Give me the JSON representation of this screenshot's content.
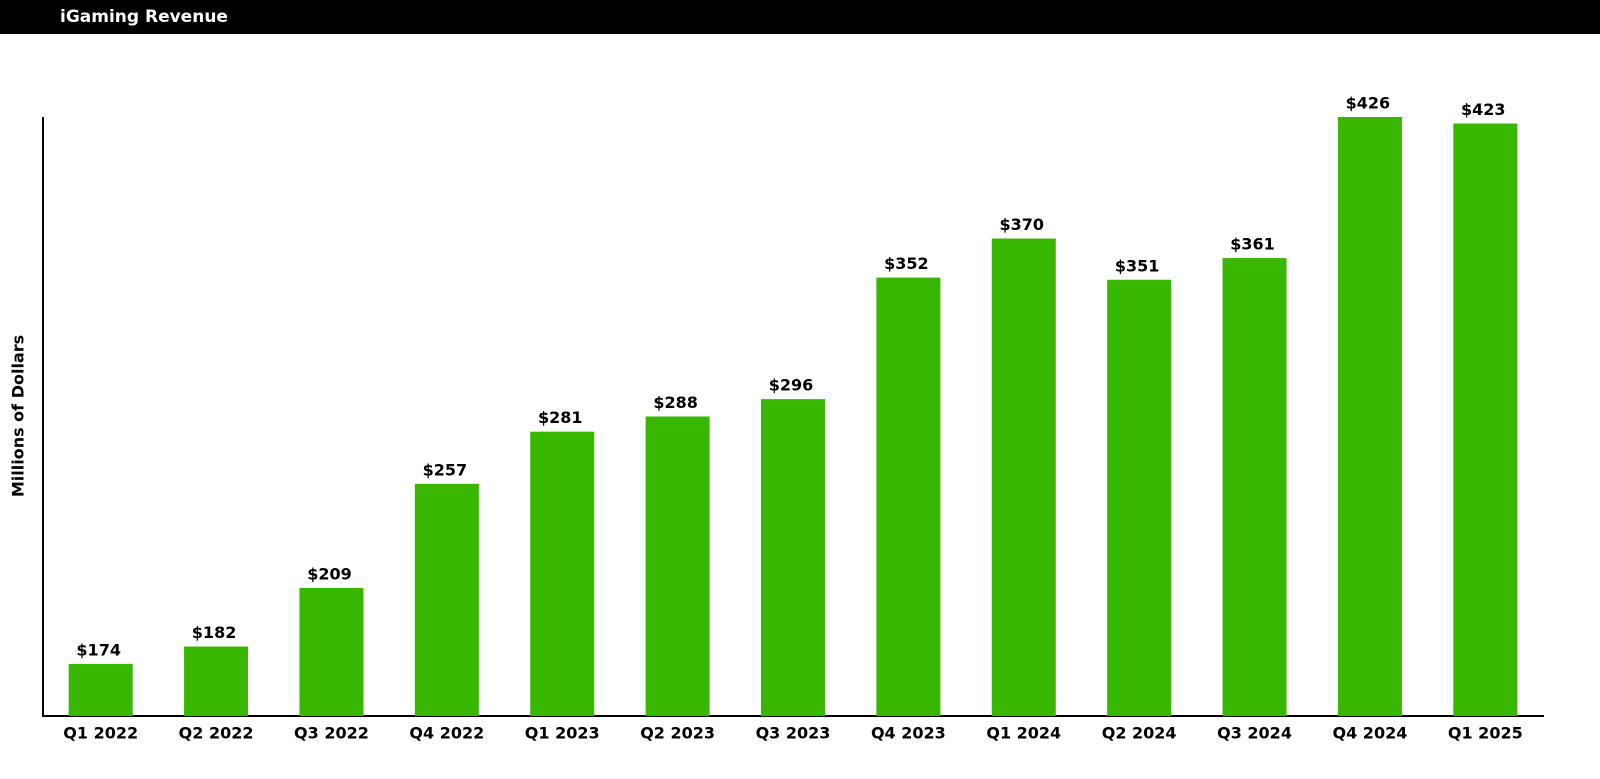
{
  "chart_data": {
    "type": "bar",
    "title": "iGaming Revenue",
    "y_label": "Millions of Dollars",
    "categories": [
      "Q1 2022",
      "Q2 2022",
      "Q3 2022",
      "Q4 2022",
      "Q1 2023",
      "Q2 2023",
      "Q3 2023",
      "Q4 2023",
      "Q1 2024",
      "Q2 2024",
      "Q3 2024",
      "Q4 2024",
      "Q1 2025"
    ],
    "values": [
      174,
      182,
      209,
      257,
      281,
      288,
      296,
      352,
      370,
      351,
      361,
      426,
      423
    ],
    "value_labels": [
      "$174",
      "$182",
      "$209",
      "$257",
      "$281",
      "$288",
      "$296",
      "$352",
      "$370",
      "$351",
      "$361",
      "$426",
      "$423"
    ],
    "color": "#38b700",
    "ylim": [
      150,
      426
    ],
    "grid": false
  }
}
